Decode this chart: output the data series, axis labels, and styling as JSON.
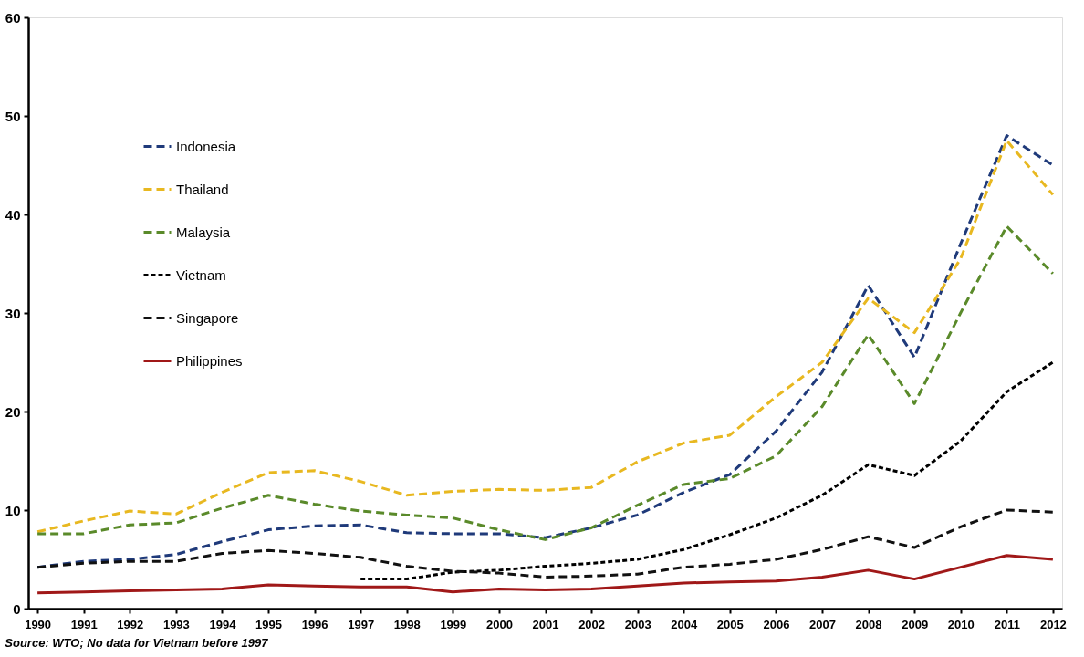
{
  "chart_data": {
    "type": "line",
    "categories": [
      "1990",
      "1991",
      "1992",
      "1993",
      "1994",
      "1995",
      "1996",
      "1997",
      "1998",
      "1999",
      "2000",
      "2001",
      "2002",
      "2003",
      "2004",
      "2005",
      "2006",
      "2007",
      "2008",
      "2009",
      "2010",
      "2011",
      "2012"
    ],
    "series": [
      {
        "name": "Indonesia",
        "color": "#1f3a7a",
        "line_style": "dashed",
        "values": [
          4.2,
          4.8,
          5.0,
          5.5,
          6.8,
          8.0,
          8.4,
          8.5,
          7.7,
          7.6,
          7.6,
          7.2,
          8.2,
          9.5,
          11.8,
          13.6,
          18,
          24,
          32.8,
          25.5,
          37,
          48,
          45
        ]
      },
      {
        "name": "Thailand",
        "color": "#e8b820",
        "line_style": "dashed",
        "values": [
          7.8,
          8.9,
          9.9,
          9.6,
          11.8,
          13.8,
          14,
          12.9,
          11.5,
          11.9,
          12.1,
          12.0,
          12.3,
          14.9,
          16.8,
          17.6,
          21.5,
          25,
          31.5,
          28,
          35.5,
          47.5,
          42
        ]
      },
      {
        "name": "Malaysia",
        "color": "#5a8a2a",
        "line_style": "dashed",
        "values": [
          7.6,
          7.6,
          8.5,
          8.7,
          10.2,
          11.5,
          10.6,
          9.9,
          9.5,
          9.2,
          8,
          7.0,
          8.2,
          10.5,
          12.6,
          13.2,
          15.5,
          20.5,
          27.8,
          20.8,
          30,
          38.8,
          34
        ]
      },
      {
        "name": "Vietnam",
        "color": "#000000",
        "line_style": "dotted",
        "values": [
          null,
          null,
          null,
          null,
          null,
          null,
          null,
          3.0,
          3.0,
          3.7,
          3.9,
          4.3,
          4.6,
          5.0,
          6.0,
          7.5,
          9.2,
          11.5,
          14.6,
          13.5,
          17,
          22,
          25
        ]
      },
      {
        "name": "Singapore",
        "color": "#111111",
        "line_style": "dashed",
        "values": [
          4.2,
          4.6,
          4.8,
          4.8,
          5.6,
          5.9,
          5.6,
          5.2,
          4.3,
          3.8,
          3.6,
          3.2,
          3.3,
          3.5,
          4.2,
          4.5,
          5.0,
          6.0,
          7.3,
          6.2,
          8.3,
          10.0,
          9.8
        ]
      },
      {
        "name": "Philippines",
        "color": "#a01818",
        "line_style": "solid",
        "values": [
          1.6,
          1.7,
          1.8,
          1.9,
          2.0,
          2.4,
          2.3,
          2.2,
          2.2,
          1.7,
          2.0,
          1.9,
          2.0,
          2.3,
          2.6,
          2.7,
          2.8,
          3.2,
          3.9,
          3.0,
          4.2,
          5.4,
          5.0
        ]
      }
    ],
    "ylim": [
      0,
      60
    ],
    "yticks": [
      0,
      10,
      20,
      30,
      40,
      50,
      60
    ],
    "grid": false,
    "legend": "top left",
    "annotations": [
      "Source: WTO; No data for Vietnam before 1997"
    ]
  }
}
